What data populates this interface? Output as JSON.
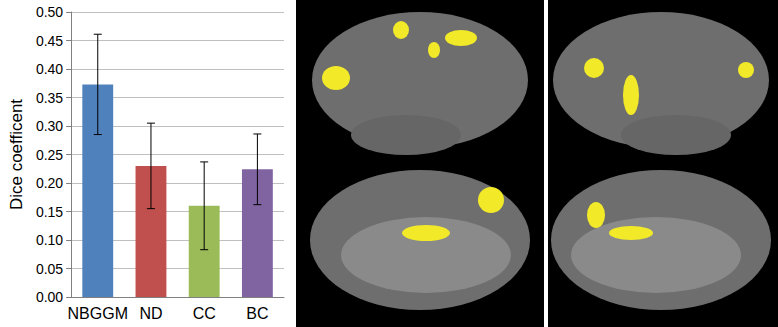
{
  "chart_data": {
    "type": "bar",
    "categories": [
      "NBGGM",
      "ND",
      "CC",
      "BC"
    ],
    "values": [
      0.373,
      0.23,
      0.16,
      0.224
    ],
    "errors": [
      0.088,
      0.075,
      0.077,
      0.062
    ],
    "colors": [
      "#4f81bd",
      "#c0504d",
      "#9bbb59",
      "#8064a2"
    ],
    "y_label": "Dice coefficent",
    "ylim": [
      0,
      0.5
    ],
    "yticks": [
      {
        "value": 0,
        "label": "0.00"
      },
      {
        "value": 0.05,
        "label": "0.05"
      },
      {
        "value": 0.1,
        "label": "0.10"
      },
      {
        "value": 0.15,
        "label": "0.15"
      },
      {
        "value": 0.2,
        "label": "0.20"
      },
      {
        "value": 0.25,
        "label": "0.25"
      },
      {
        "value": 0.3,
        "label": "0.30"
      },
      {
        "value": 0.35,
        "label": "0.35"
      },
      {
        "value": 0.4,
        "label": "0.40"
      },
      {
        "value": 0.45,
        "label": "0.45"
      },
      {
        "value": 0.5,
        "label": "0.50"
      }
    ],
    "grid": true
  }
}
